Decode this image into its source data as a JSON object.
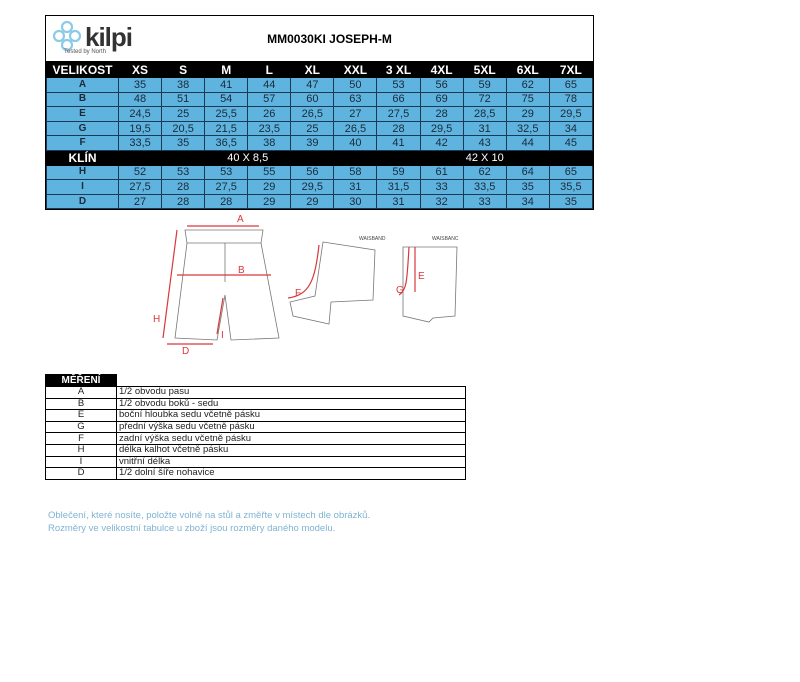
{
  "brand": {
    "name": "kilpi",
    "tagline": "Tested by North",
    "accent": "#5fb3df"
  },
  "title": "MM0030KI   JOSEPH-M",
  "size_table": {
    "header_label": "VELIKOST",
    "sizes": [
      "XS",
      "S",
      "M",
      "L",
      "XL",
      "XXL",
      "3 XL",
      "4XL",
      "5XL",
      "6XL",
      "7XL"
    ],
    "rows_top": [
      {
        "label": "A",
        "values": [
          "35",
          "38",
          "41",
          "44",
          "47",
          "50",
          "53",
          "56",
          "59",
          "62",
          "65"
        ]
      },
      {
        "label": "B",
        "values": [
          "48",
          "51",
          "54",
          "57",
          "60",
          "63",
          "66",
          "69",
          "72",
          "75",
          "78"
        ]
      },
      {
        "label": "E",
        "values": [
          "24,5",
          "25",
          "25,5",
          "26",
          "26,5",
          "27",
          "27,5",
          "28",
          "28,5",
          "29",
          "29,5"
        ]
      },
      {
        "label": "G",
        "values": [
          "19,5",
          "20,5",
          "21,5",
          "23,5",
          "25",
          "26,5",
          "28",
          "29,5",
          "31",
          "32,5",
          "34"
        ]
      },
      {
        "label": "F",
        "values": [
          "33,5",
          "35",
          "36,5",
          "38",
          "39",
          "40",
          "41",
          "42",
          "43",
          "44",
          "45"
        ]
      }
    ],
    "klin": {
      "label": "KLÍN",
      "group1": "40 X 8,5",
      "group2": "42 X 10"
    },
    "rows_bottom": [
      {
        "label": "H",
        "values": [
          "52",
          "53",
          "53",
          "55",
          "56",
          "58",
          "59",
          "61",
          "62",
          "64",
          "65"
        ]
      },
      {
        "label": "I",
        "values": [
          "27,5",
          "28",
          "27,5",
          "29",
          "29,5",
          "31",
          "31,5",
          "33",
          "33,5",
          "35",
          "35,5"
        ]
      },
      {
        "label": "D",
        "values": [
          "27",
          "28",
          "28",
          "29",
          "29",
          "30",
          "31",
          "32",
          "33",
          "34",
          "35"
        ]
      }
    ]
  },
  "diagram": {
    "labels": {
      "A": "A",
      "B": "B",
      "H": "H",
      "I": "I",
      "D": "D",
      "F": "F",
      "G": "G",
      "E": "E",
      "waisband1": "WAISBAND",
      "waisband2": "WAISBANC"
    }
  },
  "measurements": {
    "header": "MĚŘENÍ",
    "rows": [
      {
        "key": "A",
        "desc": "1/2 obvodu pasu"
      },
      {
        "key": "B",
        "desc": "1/2 obvodu boků - sedu"
      },
      {
        "key": "E",
        "desc": "boční hloubka sedu včetně pásku"
      },
      {
        "key": "G",
        "desc": "přední výška sedu včetně pásku"
      },
      {
        "key": "F",
        "desc": "zadní výška sedu včetně pásku"
      },
      {
        "key": "H",
        "desc": "délka kalhot včetně pásku"
      },
      {
        "key": "I",
        "desc": "vnitřní délka"
      },
      {
        "key": "D",
        "desc": "1/2 dolní šíře nohavice"
      }
    ]
  },
  "notes": [
    "Oblečení, které nosíte, položte volně na stůl a změřte v místech dle obrázků.",
    "Rozměry ve velikostní tabulce u zboží jsou rozměry daného modelu."
  ]
}
